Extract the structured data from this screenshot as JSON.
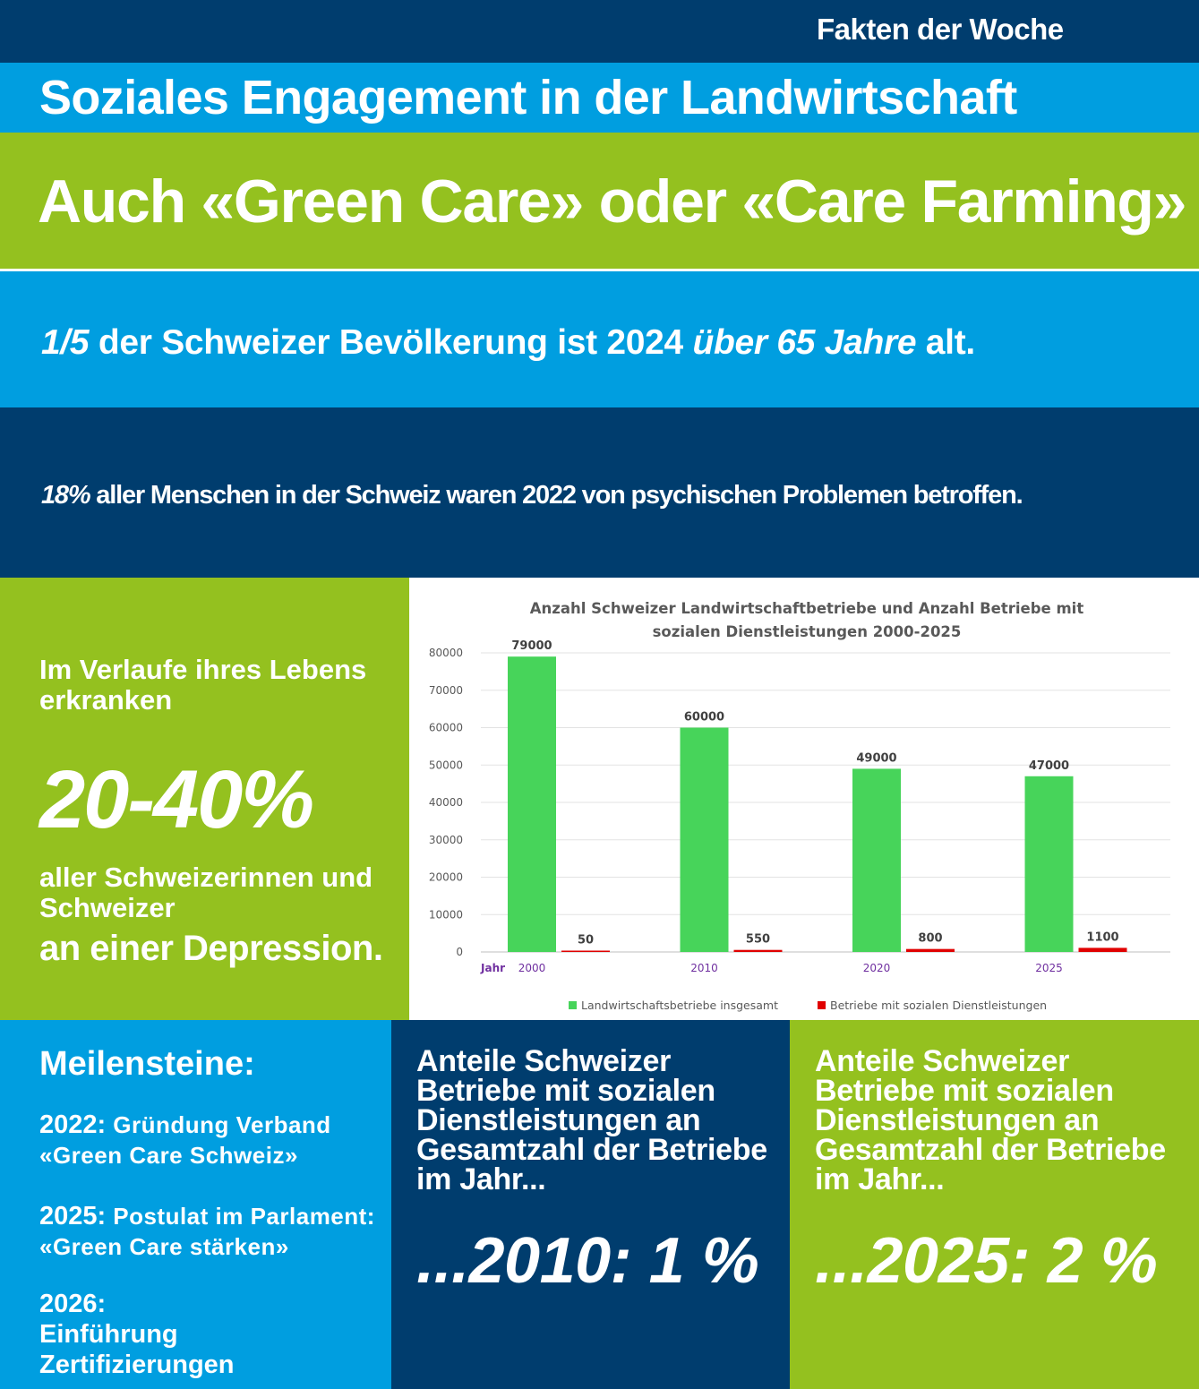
{
  "header": {
    "kicker": "Fakten der Woche",
    "subtitle": "Soziales Engagement in der Landwirtschaft",
    "title": "Auch «Green Care» oder «Care Farming»"
  },
  "fact1": {
    "emph1": "1/5",
    "part1": " der Schweizer Bevölkerung ist 2024 ",
    "emph2": "über 65 Jahre",
    "part2": " alt."
  },
  "fact2": {
    "emph": "18%",
    "part": " aller Menschen in der Schweiz waren 2022 von psychischen Problemen betroffen."
  },
  "depression": {
    "line1": "Im Verlaufe ihres Lebens erkranken",
    "big": "20-40%",
    "line2": "aller Schweizerinnen und Schweizer",
    "line3": "an einer Depression."
  },
  "milestones": {
    "heading": "Meilensteine:",
    "items": [
      {
        "year": "2022:",
        "text": "Gründung Verband «Green Care Schweiz»"
      },
      {
        "year": "2025:",
        "text": "Postulat im Parlament: «Green Care stärken»"
      },
      {
        "year": "2026:",
        "text": "Einführung Zertifizierungen"
      }
    ]
  },
  "shares": [
    {
      "text": "Anteile Schweizer Betriebe mit sozialen Dienstleistungen an Gesamtzahl der Betriebe im Jahr...",
      "value": "...2010: 1 %"
    },
    {
      "text": "Anteile Schweizer Betriebe mit sozialen Dienstleistungen an Gesamtzahl der Betriebe im Jahr...",
      "value": "...2025: 2 %"
    }
  ],
  "colors": {
    "dark_blue": "#003d6e",
    "light_blue": "#009ee0",
    "green": "#94c11f",
    "bar_green": "#47d45a",
    "bar_red": "#e00000"
  },
  "chart_data": {
    "type": "bar",
    "title_line1": "Anzahl Schweizer Landwirtschaftbetriebe und Anzahl Betriebe mit",
    "title_line2": "sozialen Dienstleistungen 2000-2025",
    "xlabel": "Jahr",
    "categories": [
      "2000",
      "2010",
      "2020",
      "2025"
    ],
    "series": [
      {
        "name": "Landwirtschaftsbetriebe insgesamt",
        "color": "#47d45a",
        "values": [
          79000,
          60000,
          49000,
          47000
        ]
      },
      {
        "name": "Betriebe mit sozialen Dienstleistungen",
        "color": "#e00000",
        "values": [
          50,
          550,
          800,
          1100
        ]
      }
    ],
    "ylim": [
      0,
      80000
    ],
    "yticks": [
      0,
      10000,
      20000,
      30000,
      40000,
      50000,
      60000,
      70000,
      80000
    ],
    "grid": true,
    "legend": "bottom"
  }
}
